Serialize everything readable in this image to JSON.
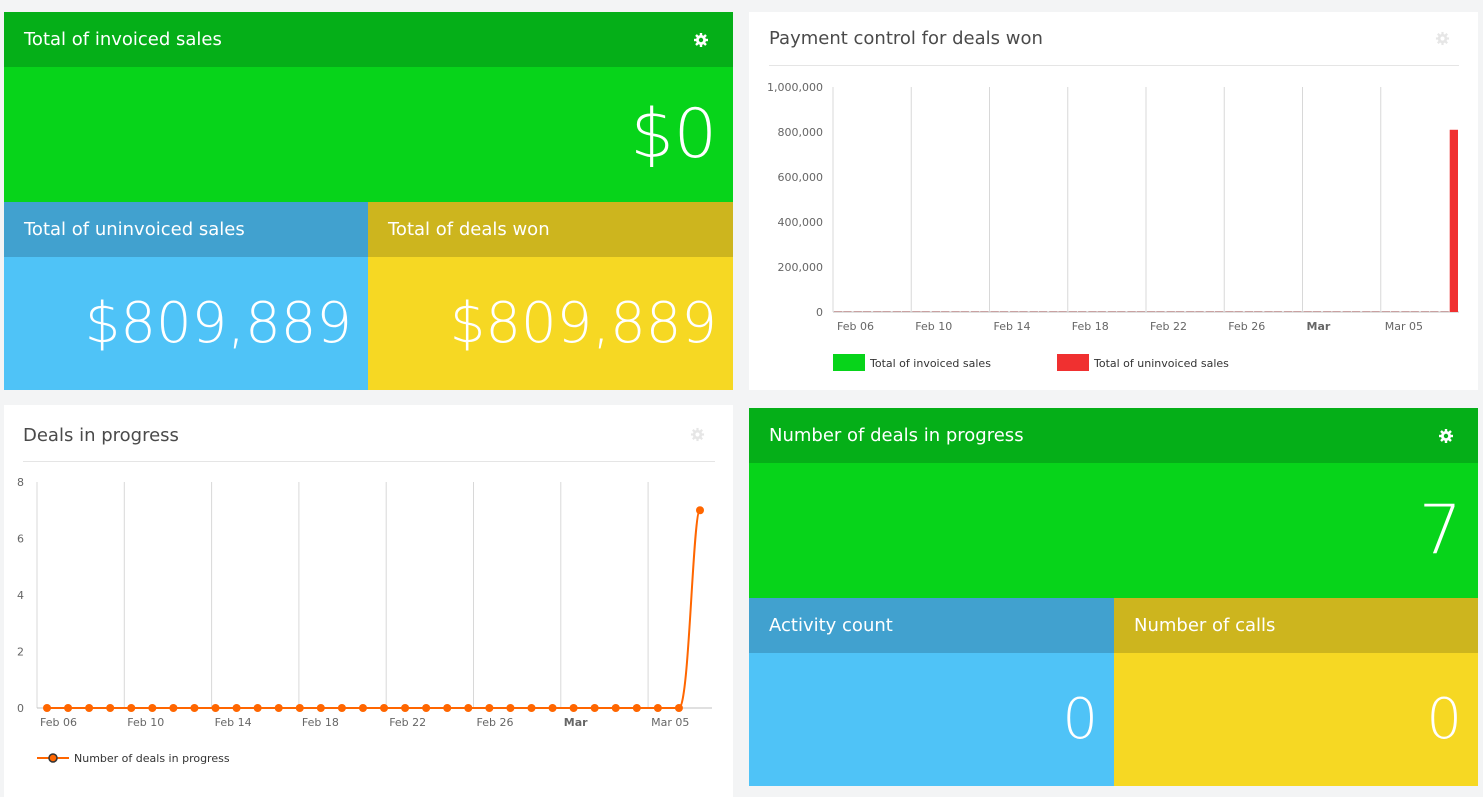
{
  "colors": {
    "green_head": "#05af18",
    "green_body": "#07d41a",
    "blue_head": "#41a1cf",
    "blue_body": "#4fc3f7",
    "yellow_head": "#cdb51e",
    "yellow_body": "#f6d823",
    "series_invoiced": "#07d41a",
    "series_uninvoiced": "#f03030",
    "series_progress": "#ff6600"
  },
  "kpi_sales": {
    "invoiced": {
      "title": "Total of invoiced sales",
      "value": "$0",
      "gear_icon": "gear-icon"
    },
    "uninvoiced": {
      "title": "Total of uninvoiced sales",
      "value": "$809,889"
    },
    "won": {
      "title": "Total of deals won",
      "value": "$809,889"
    }
  },
  "kpi_progress": {
    "deals": {
      "title": "Number of deals in progress",
      "value": "7",
      "gear_icon": "gear-icon"
    },
    "activity": {
      "title": "Activity count",
      "value": "0"
    },
    "calls": {
      "title": "Number of calls",
      "value": "0"
    }
  },
  "payment_card": {
    "title": "Payment control for deals won",
    "gear_icon": "gear-icon"
  },
  "progress_card": {
    "title": "Deals in progress",
    "gear_icon": "gear-icon"
  },
  "chart_data": [
    {
      "type": "bar",
      "title": "Payment control for deals won",
      "ylim": [
        0,
        1000000
      ],
      "yticks": [
        "0",
        "200,000",
        "400,000",
        "600,000",
        "800,000",
        "1,000,000"
      ],
      "xticks": [
        "Feb 06",
        "Feb 10",
        "Feb 14",
        "Feb 18",
        "Feb 22",
        "Feb 26",
        "Mar",
        "Mar 05"
      ],
      "grid": "vertical",
      "legend_placement": "bottom-left",
      "series": [
        {
          "name": "Total of invoiced sales",
          "values": [
            0,
            0,
            0,
            0,
            0,
            0,
            0,
            0,
            0,
            0,
            0,
            0,
            0,
            0,
            0,
            0,
            0,
            0,
            0,
            0,
            0,
            0,
            0,
            0,
            0,
            0,
            0,
            0,
            0,
            0,
            0,
            0
          ]
        },
        {
          "name": "Total of uninvoiced sales",
          "values": [
            0,
            0,
            0,
            0,
            0,
            0,
            0,
            0,
            0,
            0,
            0,
            0,
            0,
            0,
            0,
            0,
            0,
            0,
            0,
            0,
            0,
            0,
            0,
            0,
            0,
            0,
            0,
            0,
            0,
            0,
            0,
            809889
          ]
        }
      ]
    },
    {
      "type": "line",
      "title": "Deals in progress",
      "ylim": [
        0,
        8
      ],
      "yticks": [
        "0",
        "2",
        "4",
        "6",
        "8"
      ],
      "xticks": [
        "Feb 06",
        "Feb 10",
        "Feb 14",
        "Feb 18",
        "Feb 22",
        "Feb 26",
        "Mar",
        "Mar 05"
      ],
      "grid": "vertical",
      "legend_placement": "bottom-left",
      "series": [
        {
          "name": "Number of deals in progress",
          "values": [
            0,
            0,
            0,
            0,
            0,
            0,
            0,
            0,
            0,
            0,
            0,
            0,
            0,
            0,
            0,
            0,
            0,
            0,
            0,
            0,
            0,
            0,
            0,
            0,
            0,
            0,
            0,
            0,
            0,
            0,
            0,
            7
          ]
        }
      ]
    }
  ]
}
